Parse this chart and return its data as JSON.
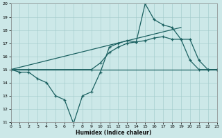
{
  "background_color": "#cce8e8",
  "line_color": "#1a6060",
  "xlabel": "Humidex (Indice chaleur)",
  "xlim": [
    0,
    23
  ],
  "ylim": [
    11,
    20
  ],
  "xticks": [
    0,
    1,
    2,
    3,
    4,
    5,
    6,
    7,
    8,
    9,
    10,
    11,
    12,
    13,
    14,
    15,
    16,
    17,
    18,
    19,
    20,
    21,
    22,
    23
  ],
  "yticks": [
    11,
    12,
    13,
    14,
    15,
    16,
    17,
    18,
    19,
    20
  ],
  "series": [
    {
      "x": [
        0,
        1,
        2,
        3,
        4,
        5,
        6,
        7,
        8,
        9,
        10,
        11,
        12,
        13,
        14,
        15,
        16,
        17,
        18,
        19,
        20,
        21,
        22,
        23
      ],
      "y": [
        15,
        14.8,
        14.8,
        14.3,
        14.0,
        13.0,
        12.7,
        10.9,
        13.0,
        13.3,
        14.8,
        16.7,
        17.0,
        17.2,
        17.1,
        20.0,
        18.8,
        18.4,
        18.2,
        17.3,
        15.7,
        15.0,
        15.0,
        15.0
      ],
      "marker": true
    },
    {
      "x": [
        0,
        19
      ],
      "y": [
        15,
        18.2
      ],
      "marker": false
    },
    {
      "x": [
        0,
        2,
        9,
        10,
        11,
        12,
        13,
        14,
        15,
        16,
        17,
        18,
        19,
        20,
        21,
        22,
        23
      ],
      "y": [
        15,
        15.0,
        15.0,
        15.5,
        16.3,
        16.7,
        17.0,
        17.1,
        17.2,
        17.4,
        17.5,
        17.3,
        17.3,
        17.3,
        15.7,
        15.0,
        15.0
      ],
      "marker": true
    },
    {
      "x": [
        0,
        2,
        9,
        10,
        21,
        22,
        23
      ],
      "y": [
        15,
        15.0,
        15.0,
        15.0,
        15.0,
        15.0,
        15.0
      ],
      "marker": false
    }
  ]
}
